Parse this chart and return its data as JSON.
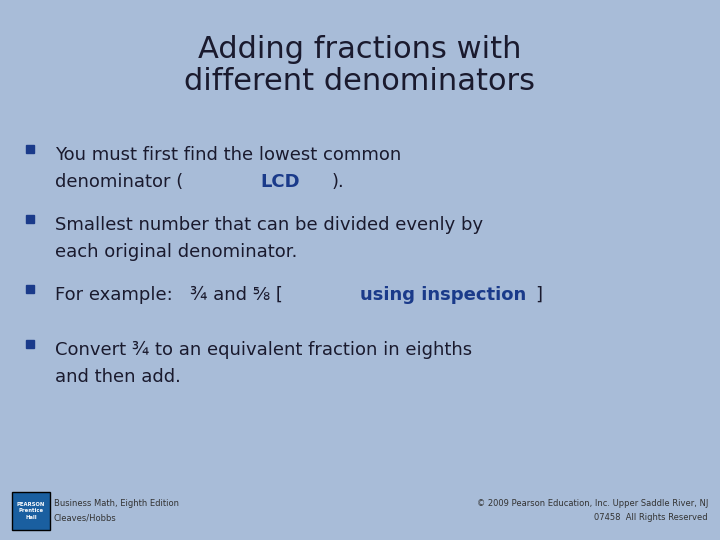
{
  "background_color": "#a8bcd8",
  "title_line1": "Adding fractions with",
  "title_line2": "different denominators",
  "title_fontsize": 22,
  "title_color": "#1a1a2e",
  "bullet_square_color": "#1a3a8a",
  "text_color": "#1a1a2e",
  "blue_color": "#1a3a8a",
  "body_fontsize": 13,
  "footer_left_line1": "Business Math, Eighth Edition",
  "footer_left_line2": "Cleaves/Hobbs",
  "footer_right_line1": "© 2009 Pearson Education, Inc. Upper Saddle River, NJ",
  "footer_right_line2": "07458  All Rights Reserved",
  "footer_fontsize": 6,
  "logo_box_color": "#1a5fa0",
  "logo_text_color": "#ffffff"
}
